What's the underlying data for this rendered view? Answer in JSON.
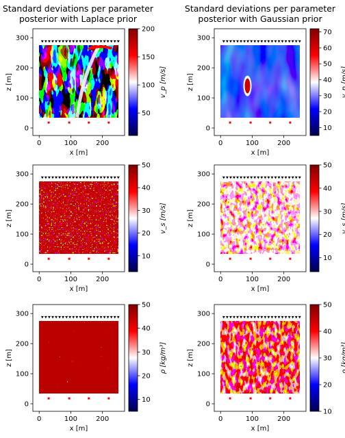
{
  "figure": {
    "titles": [
      {
        "line1": "Standard deviations per parameter",
        "line2": "posterior with Laplace prior"
      },
      {
        "line1": "Standard deviations per parameter",
        "line2": "posterior with Gaussian prior"
      }
    ]
  },
  "chart_data": [
    {
      "type": "heatmap",
      "row": 0,
      "col": 0,
      "prior": "Laplace",
      "parameter": "v_p",
      "xlabel": "x [m]",
      "ylabel": "z [m]",
      "cbar_label": "v_p [m/s]",
      "xlim": [
        -20,
        270
      ],
      "ylim": [
        -25,
        330
      ],
      "xticks": [
        0,
        100,
        200
      ],
      "yticks": [
        0,
        100,
        200,
        300
      ],
      "cbar_range": [
        10,
        200
      ],
      "cbar_ticks": [
        50,
        100,
        150,
        200
      ],
      "model_extent": {
        "x": [
          0,
          250
        ],
        "z": [
          35,
          275
        ]
      },
      "receivers_z": 287,
      "receivers_x": [
        10,
        250
      ],
      "receiver_count": 23,
      "sources_z": 18,
      "sources_x": [
        30,
        95,
        157,
        220
      ]
    },
    {
      "type": "heatmap",
      "row": 0,
      "col": 1,
      "prior": "Gaussian",
      "parameter": "v_p",
      "xlabel": "x [m]",
      "ylabel": "z [m]",
      "cbar_label": "v_p [m/s]",
      "xlim": [
        -20,
        270
      ],
      "ylim": [
        -25,
        330
      ],
      "xticks": [
        0,
        100,
        200
      ],
      "yticks": [
        0,
        100,
        200,
        300
      ],
      "cbar_range": [
        5,
        72
      ],
      "cbar_ticks": [
        10,
        20,
        30,
        40,
        50,
        60,
        70
      ],
      "model_extent": {
        "x": [
          0,
          250
        ],
        "z": [
          35,
          275
        ]
      },
      "receivers_z": 287,
      "receivers_x": [
        10,
        250
      ],
      "receiver_count": 23,
      "sources_z": 18,
      "sources_x": [
        30,
        95,
        157,
        220
      ]
    },
    {
      "type": "heatmap",
      "row": 1,
      "col": 0,
      "prior": "Laplace",
      "parameter": "v_s",
      "xlabel": "x [m]",
      "ylabel": "z [m]",
      "cbar_label": "v_s [m/s]",
      "xlim": [
        -20,
        270
      ],
      "ylim": [
        -25,
        330
      ],
      "xticks": [
        0,
        100,
        200
      ],
      "yticks": [
        0,
        100,
        200,
        300
      ],
      "cbar_range": [
        3,
        50
      ],
      "cbar_ticks": [
        10,
        20,
        30,
        40,
        50
      ],
      "model_extent": {
        "x": [
          0,
          250
        ],
        "z": [
          35,
          275
        ]
      },
      "receivers_z": 287,
      "receivers_x": [
        10,
        250
      ],
      "receiver_count": 23,
      "sources_z": 18,
      "sources_x": [
        30,
        95,
        157,
        220
      ]
    },
    {
      "type": "heatmap",
      "row": 1,
      "col": 1,
      "prior": "Gaussian",
      "parameter": "v_s",
      "xlabel": "x [m]",
      "ylabel": "z [m]",
      "cbar_label": "v_s [m/s]",
      "xlim": [
        -20,
        270
      ],
      "ylim": [
        -25,
        330
      ],
      "xticks": [
        0,
        100,
        200
      ],
      "yticks": [
        0,
        100,
        200,
        300
      ],
      "cbar_range": [
        4,
        50
      ],
      "cbar_ticks": [
        10,
        20,
        30,
        40,
        50
      ],
      "model_extent": {
        "x": [
          0,
          250
        ],
        "z": [
          35,
          275
        ]
      },
      "receivers_z": 287,
      "receivers_x": [
        10,
        250
      ],
      "receiver_count": 23,
      "sources_z": 18,
      "sources_x": [
        30,
        95,
        157,
        220
      ]
    },
    {
      "type": "heatmap",
      "row": 2,
      "col": 0,
      "prior": "Laplace",
      "parameter": "rho",
      "xlabel": "x [m]",
      "ylabel": "z [m]",
      "cbar_label": "ρ [kg/m³]",
      "xlim": [
        -20,
        270
      ],
      "ylim": [
        -25,
        330
      ],
      "xticks": [
        0,
        100,
        200
      ],
      "yticks": [
        0,
        100,
        200,
        300
      ],
      "cbar_range": [
        5,
        50
      ],
      "cbar_ticks": [
        10,
        20,
        30,
        40,
        50
      ],
      "model_extent": {
        "x": [
          0,
          250
        ],
        "z": [
          35,
          275
        ]
      },
      "receivers_z": 287,
      "receivers_x": [
        10,
        250
      ],
      "receiver_count": 23,
      "sources_z": 18,
      "sources_x": [
        30,
        95,
        157,
        220
      ]
    },
    {
      "type": "heatmap",
      "row": 2,
      "col": 1,
      "prior": "Gaussian",
      "parameter": "rho",
      "xlabel": "x [m]",
      "ylabel": "z [m]",
      "cbar_label": "ρ [kg/m³]",
      "xlim": [
        -20,
        270
      ],
      "ylim": [
        -25,
        330
      ],
      "xticks": [
        0,
        100,
        200
      ],
      "yticks": [
        0,
        100,
        200,
        300
      ],
      "cbar_range": [
        10,
        50
      ],
      "cbar_ticks": [
        10,
        20,
        30,
        40,
        50
      ],
      "model_extent": {
        "x": [
          0,
          250
        ],
        "z": [
          35,
          275
        ]
      },
      "receivers_z": 287,
      "receivers_x": [
        10,
        250
      ],
      "receiver_count": 23,
      "sources_z": 18,
      "sources_x": [
        30,
        95,
        157,
        220
      ]
    }
  ],
  "colors": {
    "colormap": [
      "#00004c",
      "#0000ff",
      "#ffffff",
      "#ff0000",
      "#800000"
    ],
    "receiver_marker": "#000000",
    "source_marker": "#ff0000"
  }
}
